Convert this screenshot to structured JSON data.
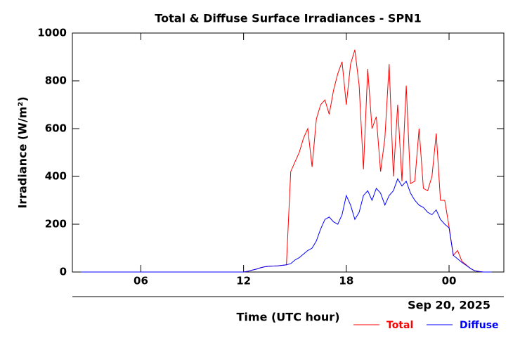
{
  "chart_data": {
    "type": "line",
    "title": "Total & Diffuse Surface Irradiances - SPN1",
    "x_label": "Time (UTC hour)",
    "y_label": "Irradiance (W/m²)",
    "date_label": "Sep 20, 2025",
    "xlim": [
      2,
      27.2
    ],
    "ylim": [
      0,
      1000
    ],
    "xticks": [
      {
        "value": 6,
        "label": "06"
      },
      12,
      18,
      {
        "value": 24,
        "label": "00"
      }
    ],
    "yticks": [
      0,
      200,
      400,
      600,
      800,
      1000
    ],
    "x": [
      2.5,
      3,
      3.5,
      4,
      4.5,
      5,
      5.5,
      6,
      6.5,
      7,
      7.5,
      8,
      8.5,
      9,
      9.5,
      10,
      10.5,
      11,
      11.5,
      12,
      12.25,
      12.5,
      12.75,
      13,
      13.25,
      13.5,
      13.75,
      14,
      14.25,
      14.5,
      14.75,
      15,
      15.25,
      15.5,
      15.75,
      16,
      16.25,
      16.5,
      16.75,
      17,
      17.25,
      17.5,
      17.75,
      18,
      18.25,
      18.5,
      18.75,
      19,
      19.25,
      19.5,
      19.75,
      20,
      20.25,
      20.5,
      20.75,
      21,
      21.25,
      21.5,
      21.75,
      22,
      22.25,
      22.5,
      22.75,
      23,
      23.25,
      23.5,
      23.75,
      24,
      24.25,
      24.5,
      24.75,
      25,
      25.25,
      25.5,
      25.75,
      26,
      26.25,
      26.5
    ],
    "series": [
      {
        "name": "Total",
        "color": "#ff0000",
        "values": [
          0,
          0,
          0,
          0,
          0,
          0,
          0,
          0,
          0,
          0,
          0,
          0,
          0,
          0,
          0,
          0,
          0,
          0,
          0,
          0,
          3,
          8,
          12,
          18,
          22,
          24,
          25,
          26,
          28,
          30,
          420,
          460,
          500,
          560,
          600,
          440,
          640,
          700,
          720,
          660,
          760,
          830,
          880,
          700,
          870,
          930,
          780,
          430,
          850,
          600,
          650,
          420,
          560,
          870,
          400,
          700,
          380,
          780,
          370,
          380,
          600,
          350,
          340,
          400,
          580,
          300,
          300,
          190,
          70,
          90,
          45,
          30,
          15,
          5,
          2,
          0,
          0,
          0
        ]
      },
      {
        "name": "Diffuse",
        "color": "#0000ff",
        "values": [
          0,
          0,
          0,
          0,
          0,
          0,
          0,
          0,
          0,
          0,
          0,
          0,
          0,
          0,
          0,
          0,
          0,
          0,
          0,
          0,
          3,
          8,
          12,
          18,
          22,
          24,
          25,
          26,
          28,
          30,
          35,
          50,
          60,
          75,
          90,
          100,
          130,
          180,
          220,
          230,
          210,
          200,
          240,
          320,
          280,
          220,
          250,
          320,
          340,
          300,
          350,
          330,
          280,
          320,
          340,
          390,
          360,
          380,
          330,
          300,
          280,
          270,
          250,
          240,
          260,
          220,
          200,
          185,
          70,
          55,
          40,
          28,
          15,
          5,
          2,
          0,
          0,
          0
        ]
      }
    ]
  }
}
